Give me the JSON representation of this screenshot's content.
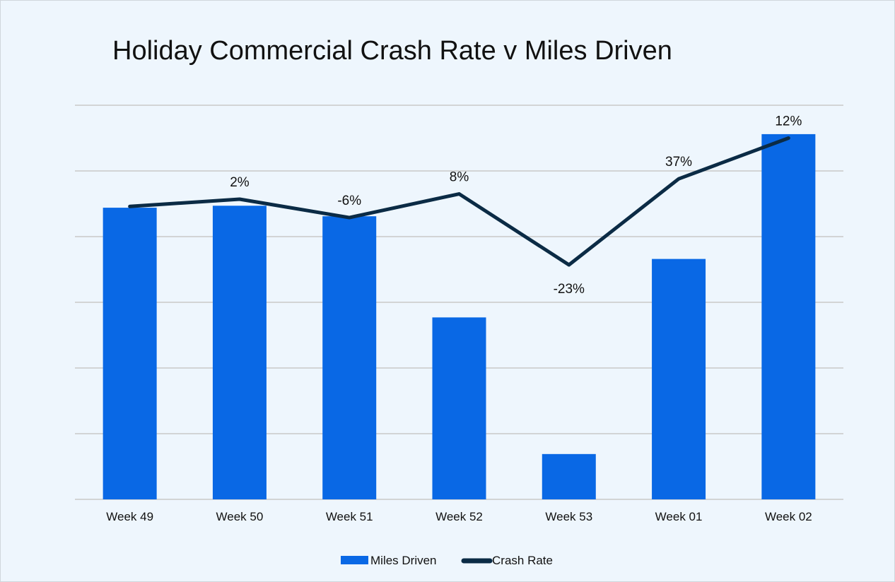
{
  "chart_data": {
    "type": "bar+line",
    "title": "Holiday Commercial Crash Rate v Miles Driven",
    "categories": [
      "Week 49",
      "Week 50",
      "Week 51",
      "Week 52",
      "Week 53",
      "Week 01",
      "Week 02"
    ],
    "series": [
      {
        "name": "Miles Driven",
        "type": "bar",
        "color": "#0968e5",
        "values": [
          4.44,
          4.47,
          4.31,
          2.77,
          0.69,
          3.66,
          5.56
        ]
      },
      {
        "name": "Crash Rate",
        "type": "line",
        "color": "#0b2b45",
        "values": [
          4.46,
          4.57,
          4.29,
          4.65,
          3.57,
          4.88,
          5.5
        ],
        "data_labels": [
          "",
          "2%",
          "-6%",
          "8%",
          "-23%",
          "37%",
          "12%"
        ]
      }
    ],
    "ylim": [
      0,
      6
    ],
    "y_axis_labels_shown": false,
    "grid": true,
    "legend": "bottom"
  }
}
